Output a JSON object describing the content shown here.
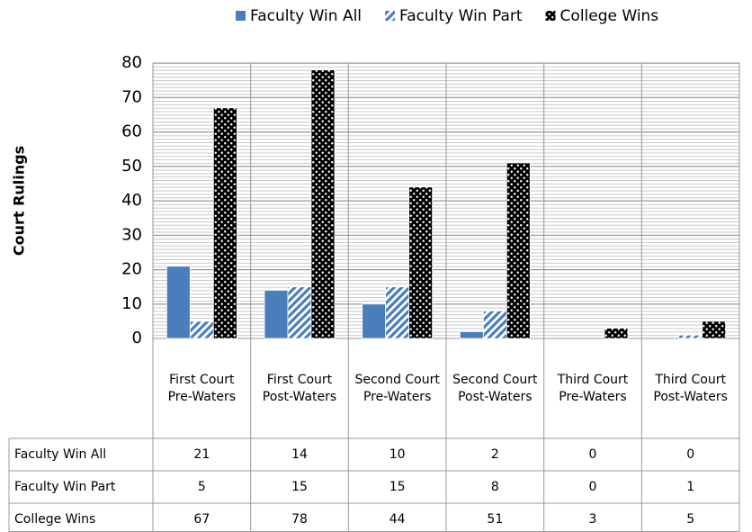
{
  "chart_data": {
    "type": "bar",
    "categories": [
      "First Court Pre-Waters",
      "First Court Post-Waters",
      "Second Court Pre-Waters",
      "Second Court Post-Waters",
      "Third Court Pre-Waters",
      "Third Court Post-Waters"
    ],
    "series": [
      {
        "name": "Faculty Win All",
        "color": "#4a7ebb",
        "fill_style": "solid",
        "values": [
          21,
          14,
          10,
          2,
          0,
          0
        ]
      },
      {
        "name": "Faculty Win Part",
        "color": "#4a7ebb",
        "fill_style": "striped",
        "values": [
          5,
          15,
          15,
          8,
          0,
          1
        ]
      },
      {
        "name": "College Wins",
        "color": "#000000",
        "fill_style": "dotted",
        "values": [
          67,
          78,
          44,
          51,
          3,
          5
        ]
      }
    ],
    "y_label": "Court Rulings",
    "ylim": [
      0,
      80
    ],
    "yticks": [
      0,
      10,
      20,
      30,
      40,
      50,
      60,
      70,
      80
    ],
    "grid": true,
    "legend": "top"
  }
}
